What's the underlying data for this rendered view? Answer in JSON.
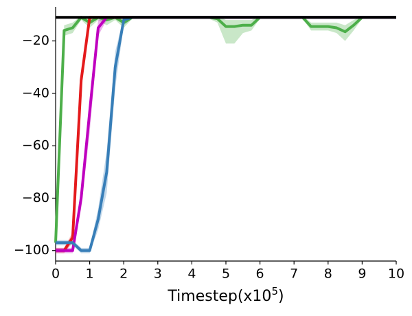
{
  "chart_data": {
    "type": "line",
    "xlabel": [
      "Timestep(x10",
      "5",
      ")"
    ],
    "x": [
      0,
      0.25,
      0.5,
      0.75,
      1,
      1.25,
      1.5,
      1.75,
      2,
      2.25,
      2.5,
      2.75,
      3,
      3.25,
      3.5,
      3.75,
      4,
      4.25,
      4.5,
      4.75,
      5,
      5.25,
      5.5,
      5.75,
      6,
      6.25,
      6.5,
      6.75,
      7,
      7.25,
      7.5,
      7.75,
      8,
      8.25,
      8.5,
      8.75,
      9,
      9.25,
      9.5,
      9.75,
      10
    ],
    "xlim": [
      0,
      10
    ],
    "xticks": [
      0,
      1,
      2,
      3,
      4,
      5,
      6,
      7,
      8,
      9,
      10
    ],
    "ylim": [
      -104,
      -7
    ],
    "yticks": [
      {
        "value": -100,
        "label": "−100"
      },
      {
        "value": -80,
        "label": "−80"
      },
      {
        "value": -60,
        "label": "−60"
      },
      {
        "value": -40,
        "label": "−40"
      },
      {
        "value": -20,
        "label": "−20"
      }
    ],
    "hline": {
      "value": -11,
      "color": "#000000"
    },
    "series": [
      {
        "color": "#4daf4a",
        "values": [
          -97,
          -16,
          -15,
          -11,
          -13,
          -11,
          -12,
          -11,
          -13,
          -11,
          -11,
          -11,
          -11,
          -11,
          -11,
          -11,
          -11,
          -11,
          -11,
          -11.5,
          -14.5,
          -14.5,
          -14,
          -14,
          -11,
          -11,
          -11,
          -11,
          -11,
          -11,
          -14.5,
          -14.5,
          -14.5,
          -15,
          -16.5,
          -14,
          -11,
          -11,
          -11,
          -11,
          -11
        ],
        "lower": [
          -99,
          -18,
          -17,
          -12,
          -15,
          -12,
          -14,
          -12,
          -15,
          -11.5,
          -11.5,
          -11.5,
          -11.5,
          -11.5,
          -11.5,
          -11.5,
          -11.5,
          -11.5,
          -11.5,
          -13,
          -21,
          -21,
          -17,
          -16,
          -11.5,
          -11.5,
          -11.5,
          -11.5,
          -11.5,
          -11.5,
          -16,
          -16,
          -16,
          -17,
          -20,
          -16,
          -11.5,
          -11.5,
          -11.5,
          -11.5,
          -11.5
        ],
        "upper": [
          -95,
          -14,
          -13,
          -10.5,
          -11,
          -10.5,
          -10.5,
          -10.5,
          -11,
          -10.5,
          -10.5,
          -10.5,
          -10.5,
          -10.5,
          -10.5,
          -10.5,
          -10.5,
          -10.5,
          -10.5,
          -10.5,
          -12,
          -12,
          -12,
          -12,
          -10.5,
          -10.5,
          -10.5,
          -10.5,
          -10.5,
          -10.5,
          -13,
          -13,
          -13,
          -13,
          -14,
          -12,
          -10.5,
          -10.5,
          -10.5,
          -10.5,
          -10.5
        ]
      },
      {
        "color": "#e41a1c",
        "values": [
          -100,
          -100,
          -95,
          -35,
          -11,
          -11,
          -11,
          -11,
          -11,
          -11,
          -11,
          -11,
          -11,
          -11,
          -11,
          -11,
          -11,
          -11,
          -11,
          -11,
          -11,
          -11,
          -11,
          -11,
          -11,
          -11,
          -11,
          -11,
          -11,
          -11,
          -11,
          -11,
          -11,
          -11,
          -11,
          -11,
          -11,
          -11,
          -11,
          -11,
          -11
        ],
        "lower": [
          -101,
          -101,
          -97,
          -38,
          -12,
          -11.5,
          -11.5,
          -11.5,
          -11.5,
          -11.5,
          -11.5,
          -11.5,
          -11.5,
          -11.5,
          -11.5,
          -11.5,
          -11.5,
          -11.5,
          -11.5,
          -11.5,
          -11.5,
          -11.5,
          -11.5,
          -11.5,
          -11.5,
          -11.5,
          -11.5,
          -11.5,
          -11.5,
          -11.5,
          -11.5,
          -11.5,
          -11.5,
          -11.5,
          -11.5,
          -11.5,
          -11.5,
          -11.5,
          -11.5,
          -11.5,
          -11.5
        ],
        "upper": [
          -99,
          -99,
          -93,
          -32,
          -10.5,
          -10.5,
          -10.5,
          -10.5,
          -10.5,
          -10.5,
          -10.5,
          -10.5,
          -10.5,
          -10.5,
          -10.5,
          -10.5,
          -10.5,
          -10.5,
          -10.5,
          -10.5,
          -10.5,
          -10.5,
          -10.5,
          -10.5,
          -10.5,
          -10.5,
          -10.5,
          -10.5,
          -10.5,
          -10.5,
          -10.5,
          -10.5,
          -10.5,
          -10.5,
          -10.5,
          -10.5,
          -10.5,
          -10.5,
          -10.5,
          -10.5,
          -10.5
        ]
      },
      {
        "color": "#bf00bf",
        "values": [
          -100,
          -100,
          -100,
          -80,
          -47,
          -15,
          -11,
          -11,
          -11,
          -11,
          -11,
          -11,
          -11,
          -11,
          -11,
          -11,
          -11,
          -11,
          -11,
          -11,
          -11,
          -11,
          -11,
          -11,
          -11,
          -11,
          -11,
          -11,
          -11,
          -11,
          -11,
          -11,
          -11,
          -11,
          -11,
          -11,
          -11,
          -11,
          -11,
          -11,
          -11
        ],
        "lower": [
          -101,
          -101,
          -101,
          -84,
          -55,
          -18,
          -12,
          -11.5,
          -11.5,
          -11.5,
          -11.5,
          -11.5,
          -11.5,
          -11.5,
          -11.5,
          -11.5,
          -11.5,
          -11.5,
          -11.5,
          -11.5,
          -11.5,
          -11.5,
          -11.5,
          -11.5,
          -11.5,
          -11.5,
          -11.5,
          -11.5,
          -11.5,
          -11.5,
          -11.5,
          -11.5,
          -11.5,
          -11.5,
          -11.5,
          -11.5,
          -11.5,
          -11.5,
          -11.5,
          -11.5,
          -11.5
        ],
        "upper": [
          -99,
          -99,
          -99,
          -76,
          -42,
          -12,
          -10.5,
          -10.5,
          -10.5,
          -10.5,
          -10.5,
          -10.5,
          -10.5,
          -10.5,
          -10.5,
          -10.5,
          -10.5,
          -10.5,
          -10.5,
          -10.5,
          -10.5,
          -10.5,
          -10.5,
          -10.5,
          -10.5,
          -10.5,
          -10.5,
          -10.5,
          -10.5,
          -10.5,
          -10.5,
          -10.5,
          -10.5,
          -10.5,
          -10.5,
          -10.5,
          -10.5,
          -10.5,
          -10.5,
          -10.5,
          -10.5
        ]
      },
      {
        "color": "#377eb8",
        "values": [
          -97,
          -97,
          -97,
          -100,
          -100,
          -88,
          -70,
          -30,
          -12,
          -11,
          -11,
          -11,
          -11,
          -11,
          -11,
          -11,
          -11,
          -11,
          -11,
          -11,
          -11,
          -11,
          -11,
          -11,
          -11,
          -11,
          -11,
          -11,
          -11,
          -11,
          -11,
          -11,
          -11,
          -11,
          -11,
          -11,
          -11,
          -11,
          -11,
          -11,
          -11
        ],
        "lower": [
          -98,
          -98,
          -98,
          -101,
          -101,
          -92,
          -78,
          -38,
          -14,
          -11.5,
          -11.5,
          -11.5,
          -11.5,
          -11.5,
          -11.5,
          -11.5,
          -11.5,
          -11.5,
          -11.5,
          -11.5,
          -11.5,
          -11.5,
          -11.5,
          -11.5,
          -11.5,
          -11.5,
          -11.5,
          -11.5,
          -11.5,
          -11.5,
          -11.5,
          -11.5,
          -11.5,
          -11.5,
          -11.5,
          -11.5,
          -11.5,
          -11.5,
          -11.5,
          -11.5,
          -11.5
        ],
        "upper": [
          -96,
          -96,
          -96,
          -99,
          -99,
          -84,
          -62,
          -24,
          -11,
          -10.5,
          -10.5,
          -10.5,
          -10.5,
          -10.5,
          -10.5,
          -10.5,
          -10.5,
          -10.5,
          -10.5,
          -10.5,
          -10.5,
          -10.5,
          -10.5,
          -10.5,
          -10.5,
          -10.5,
          -10.5,
          -10.5,
          -10.5,
          -10.5,
          -10.5,
          -10.5,
          -10.5,
          -10.5,
          -10.5,
          -10.5,
          -10.5,
          -10.5,
          -10.5,
          -10.5,
          -10.5
        ]
      }
    ]
  }
}
